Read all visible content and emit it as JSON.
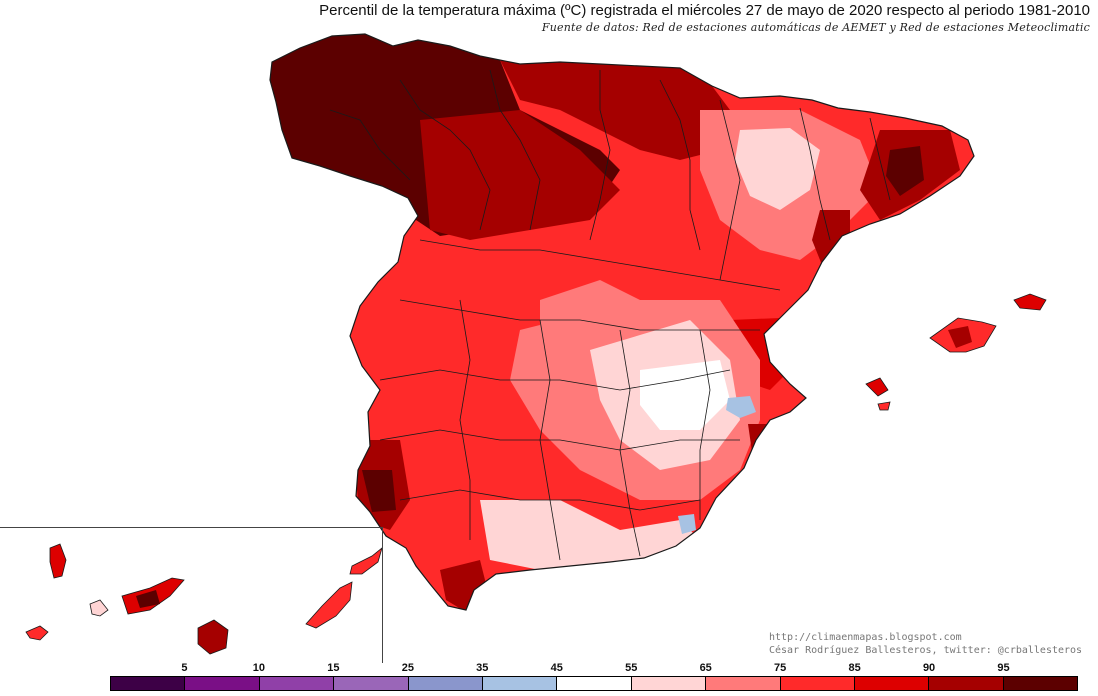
{
  "header": {
    "title": "Percentil de la temperatura máxima (ºC) registrada el miércoles 27 de mayo de 2020 respecto al periodo 1981-2010",
    "source": "Fuente de datos: Red de estaciones automáticas de AEMET y Red de estaciones Meteoclimatic"
  },
  "credits": {
    "blog": "http://climaenmapas.blogspot.com",
    "author": "César Rodríguez Ballesteros, twitter: @crballesteros"
  },
  "legend": {
    "labels": [
      "5",
      "10",
      "15",
      "25",
      "35",
      "45",
      "55",
      "65",
      "75",
      "85",
      "90",
      "95"
    ],
    "colors": [
      "#3d0046",
      "#7a0f86",
      "#9040a8",
      "#9a66b8",
      "#8a96cc",
      "#a7c2e3",
      "#ffffff",
      "#ffd5d5",
      "#ff7a7a",
      "#ff2a2a",
      "#dd0000",
      "#a50000",
      "#5c0000"
    ]
  },
  "map_colors": {
    "water": "#ffffff",
    "border": "#1a1a1a",
    "p55": "#ffffff",
    "p65": "#ffd5d5",
    "p75": "#ff7a7a",
    "p85": "#ff2a2a",
    "p90": "#dd0000",
    "p95": "#a50000",
    "p100": "#5c0000",
    "p35": "#a7c2e3",
    "p25": "#8a96cc"
  }
}
